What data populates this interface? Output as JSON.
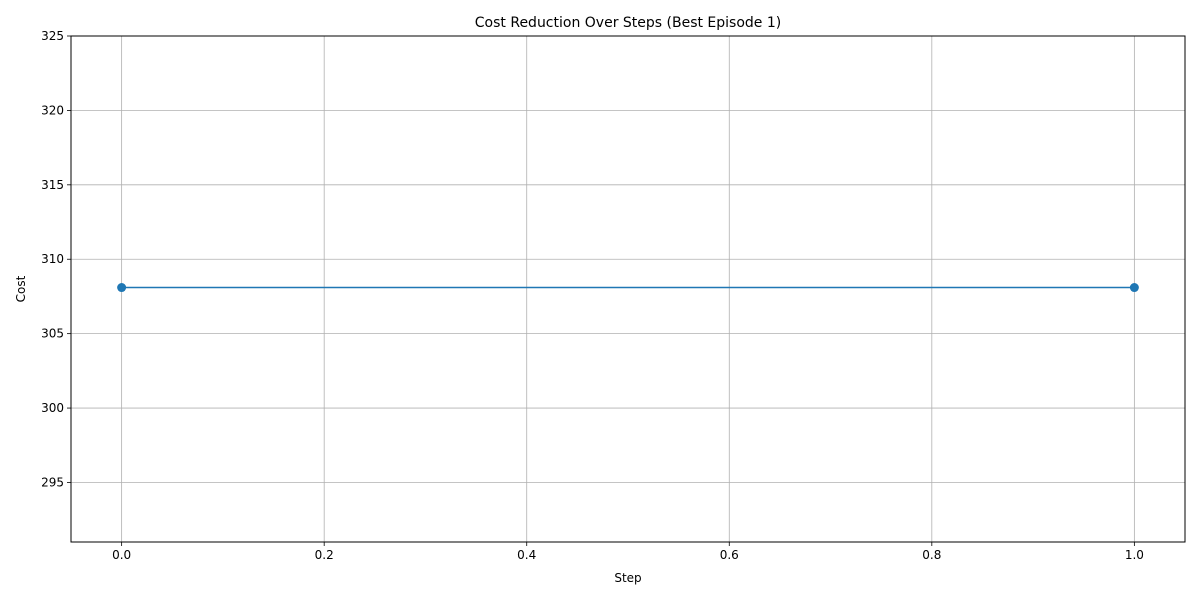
{
  "chart_data": {
    "type": "line",
    "title": "Cost Reduction Over Steps (Best Episode 1)",
    "xlabel": "Step",
    "ylabel": "Cost",
    "xlim": [
      -0.05,
      1.05
    ],
    "ylim": [
      291,
      325
    ],
    "x_ticks": [
      0.0,
      0.2,
      0.4,
      0.6,
      0.8,
      1.0
    ],
    "x_tick_labels": [
      "0.0",
      "0.2",
      "0.4",
      "0.6",
      "0.8",
      "1.0"
    ],
    "y_ticks": [
      295,
      300,
      305,
      310,
      315,
      320,
      325
    ],
    "y_tick_labels": [
      "295",
      "300",
      "305",
      "310",
      "315",
      "320",
      "325"
    ],
    "grid": true,
    "series": [
      {
        "x": [
          0,
          1
        ],
        "values": [
          308.1,
          308.1
        ],
        "color": "#1f77b4",
        "marker": "circle"
      }
    ]
  }
}
